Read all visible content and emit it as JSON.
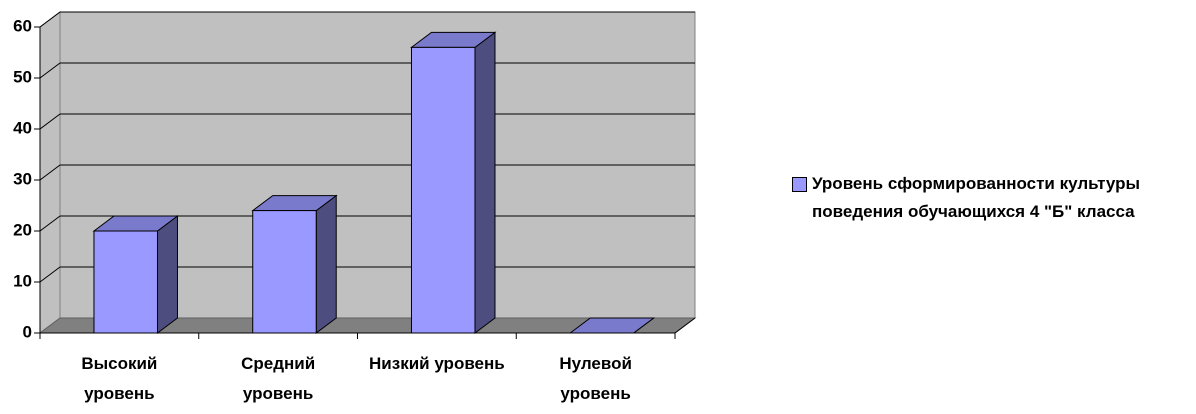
{
  "chart_data": {
    "type": "bar3d",
    "categories": [
      "Высокий уровень",
      "Средний уровень",
      "Низкий уровень",
      "Нулевой уровень"
    ],
    "series": [
      {
        "name": "Уровень сформированности культуры поведения обучающихся 4 \"Б\" класса",
        "color": "#9999ff",
        "values": [
          20,
          24,
          56,
          0
        ]
      }
    ],
    "ylim": [
      0,
      60
    ],
    "yticks": [
      0,
      10,
      20,
      30,
      40,
      50,
      60
    ],
    "grid": true,
    "legend": "right"
  }
}
